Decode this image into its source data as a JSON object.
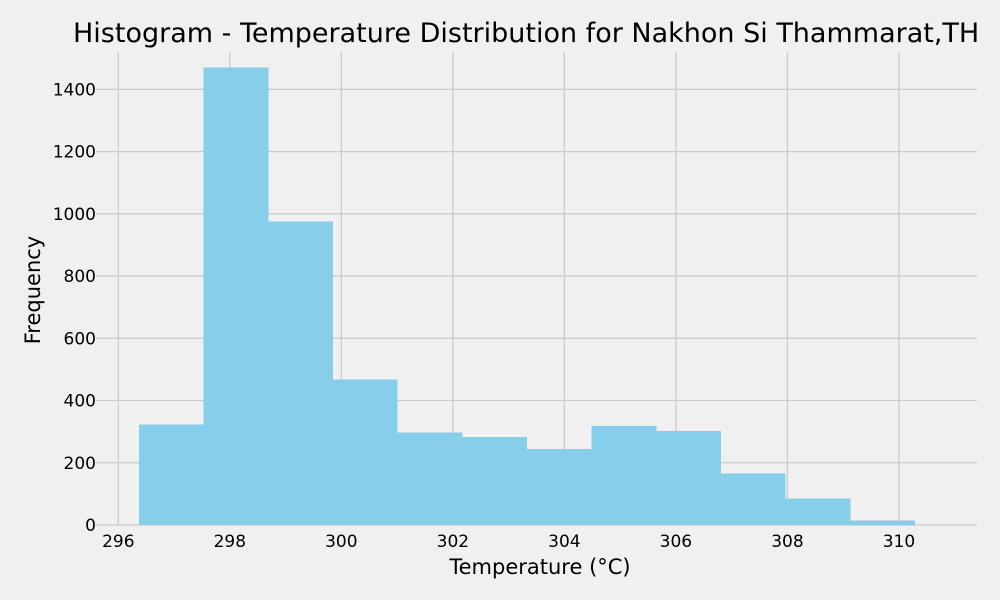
{
  "chart_data": {
    "type": "bar",
    "title": "Histogram - Temperature Distribution for Nakhon Si Thammarat,TH",
    "xlabel": "Temperature (°C)",
    "ylabel": "Frequency",
    "xlim": [
      295.6,
      311.4
    ],
    "ylim": [
      0,
      1520
    ],
    "xticks": [
      296,
      298,
      300,
      302,
      304,
      306,
      308,
      310
    ],
    "yticks": [
      0,
      200,
      400,
      600,
      800,
      1000,
      1200,
      1400
    ],
    "bin_edges": [
      296.37,
      297.53,
      298.69,
      299.85,
      301.01,
      302.17,
      303.33,
      304.49,
      305.65,
      306.81,
      307.97,
      309.13,
      310.29
    ],
    "values": [
      323,
      1470,
      975,
      467,
      298,
      282,
      244,
      318,
      302,
      166,
      85,
      15
    ],
    "grid": true,
    "legend": "none",
    "colors": {
      "bar": "#87ceeb",
      "background": "#f0f0f0",
      "grid": "#cbcbcb"
    }
  }
}
